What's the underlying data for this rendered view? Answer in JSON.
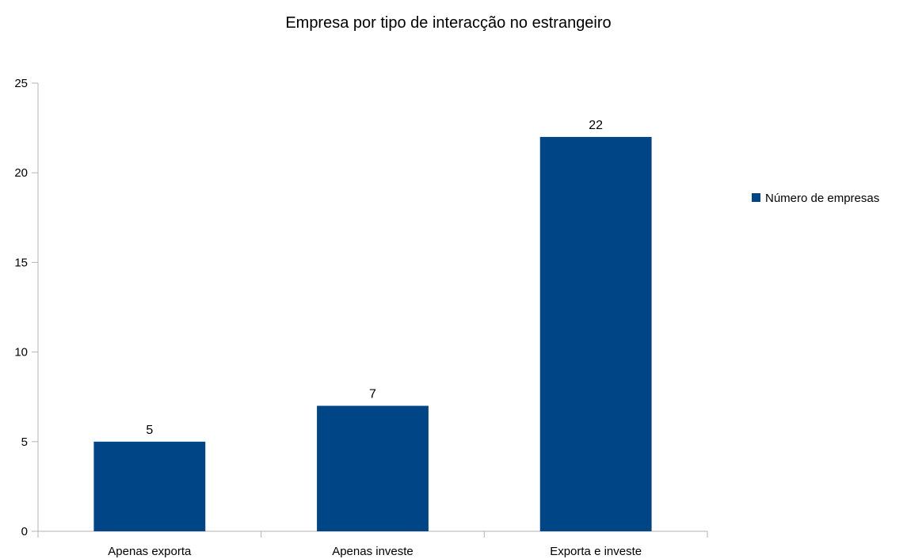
{
  "chart_data": {
    "type": "bar",
    "title": "Empresa por tipo de interacção no estrangeiro",
    "xlabel": "",
    "ylabel": "",
    "categories": [
      "Apenas exporta",
      "Apenas investe",
      "Exporta e investe"
    ],
    "series": [
      {
        "name": "Número de empresas",
        "values": [
          5,
          7,
          22
        ],
        "color": "#004586"
      }
    ],
    "ylim": [
      0,
      25
    ],
    "yticks": [
      0,
      5,
      10,
      15,
      20,
      25
    ],
    "grid": false,
    "legend_position": "right",
    "data_labels": true
  }
}
